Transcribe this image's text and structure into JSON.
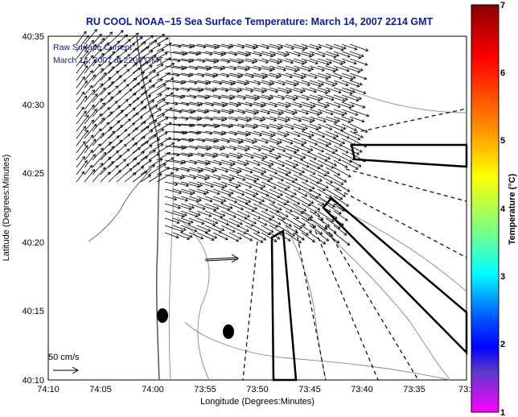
{
  "title": "RU COOL  NOAA−15  Sea Surface Temperature:  March 14, 2007 2214 GMT",
  "annotation": {
    "line1": "Raw Surface Current",
    "line2": "March 14, 2007 at 2200 GMT"
  },
  "axes": {
    "xlabel": "Longitude (Degrees:Minutes)",
    "ylabel": "Latitude (Degrees:Minutes)",
    "xticks": [
      "74:10",
      "74:05",
      "74:00",
      "73:55",
      "73:50",
      "73:45",
      "73:40",
      "73:35",
      "73:3"
    ],
    "yticks": [
      "40:35",
      "40:30",
      "40:25",
      "40:20",
      "40:15",
      "40:10"
    ]
  },
  "scale_label": "50 cm/s",
  "colorbar": {
    "label": "Temperature (°C)",
    "ticks": [
      "7",
      "6",
      "5",
      "4",
      "3",
      "2",
      "1"
    ],
    "colors": [
      "#8b0000",
      "#ff0000",
      "#ff8c00",
      "#ffff00",
      "#7fff7f",
      "#00ffff",
      "#0060ff",
      "#0000ff",
      "#5a3cc8",
      "#ff00ff"
    ]
  }
}
